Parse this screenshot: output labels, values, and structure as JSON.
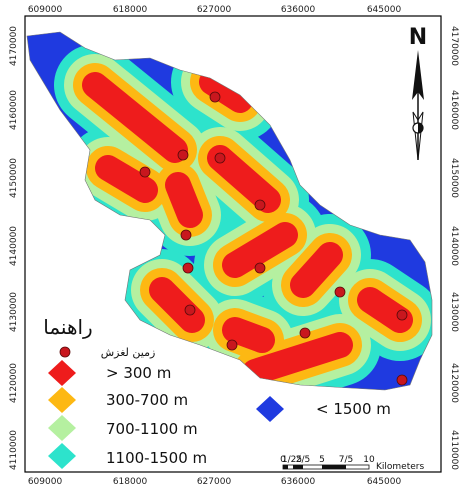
{
  "top_ticks": [
    "609000",
    "618000",
    "627000",
    "636000",
    "645000"
  ],
  "bottom_ticks": [
    "609000",
    "618000",
    "627000",
    "636000",
    "645000"
  ],
  "left_ticks": [
    "4170000",
    "4160000",
    "4150000",
    "4140000",
    "4130000",
    "4120000",
    "4110000"
  ],
  "right_ticks": [
    "4170000",
    "4160000",
    "4150000",
    "4140000",
    "4130000",
    "4120000",
    "4110000"
  ],
  "north_label": "N",
  "legend": {
    "title": "راهنما",
    "landslide_label": "زمین لغزش",
    "classes": [
      {
        "label": "> 300 m",
        "color": "#ee1c1c"
      },
      {
        "label": "300-700 m",
        "color": "#fdb813"
      },
      {
        "label": "700-1100 m",
        "color": "#b5f0a0"
      },
      {
        "label": "1100-1500 m",
        "color": "#2de3cc"
      },
      {
        "label": "< 1500 m",
        "color": "#1f3ae0"
      }
    ]
  },
  "scale": {
    "ticks": [
      "0",
      "1/25",
      "2/5",
      "5",
      "7/5",
      "10"
    ],
    "unit": "Kilometers"
  },
  "colors": {
    "frame": "#000000",
    "point": "#c8171e",
    "point_stroke": "#5a0a0a"
  }
}
